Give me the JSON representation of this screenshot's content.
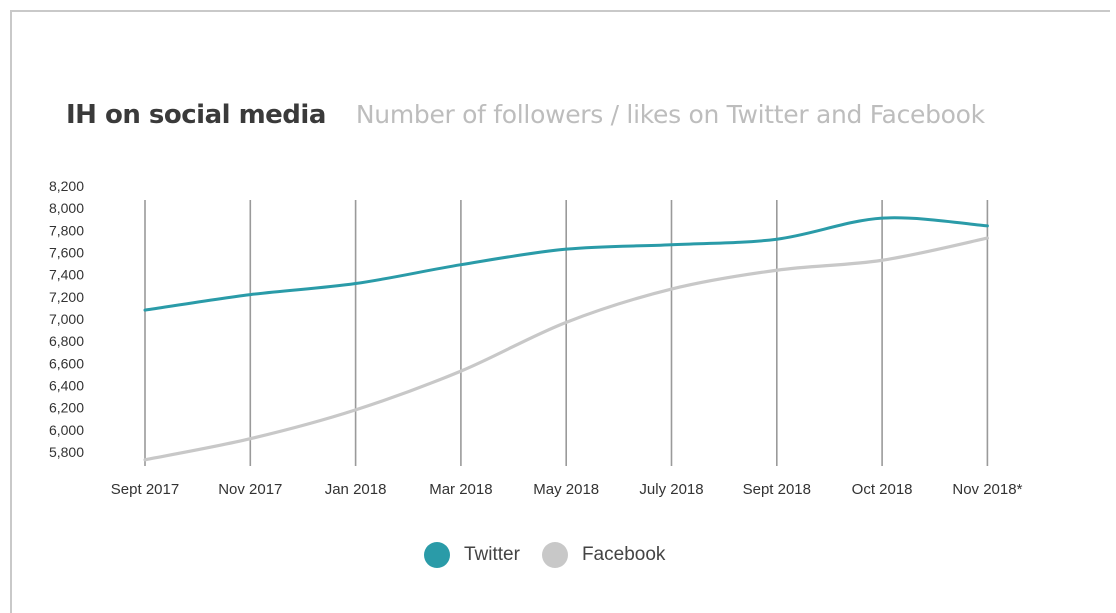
{
  "header": {
    "title": "IH on social media",
    "subtitle": "Number of followers / likes on Twitter and Facebook"
  },
  "colors": {
    "twitter": "#2a9ba8",
    "facebook": "#c8c8c8",
    "grid": "#9a9a9a"
  },
  "chart_data": {
    "type": "line",
    "title": "IH on social media",
    "subtitle": "Number of followers / likes on Twitter and Facebook",
    "categories": [
      "Sept 2017",
      "Nov 2017",
      "Jan 2018",
      "Mar 2018",
      "May 2018",
      "July 2018",
      "Sept 2018",
      "Oct 2018",
      "Nov 2018*"
    ],
    "series": [
      {
        "name": "Twitter",
        "values": [
          7080,
          7220,
          7320,
          7490,
          7630,
          7670,
          7720,
          7910,
          7840
        ]
      },
      {
        "name": "Facebook",
        "values": [
          5730,
          5920,
          6180,
          6530,
          6970,
          7270,
          7440,
          7530,
          7730
        ]
      }
    ],
    "y_ticks": [
      "8,200",
      "8,000",
      "7,800",
      "7,600",
      "7,400",
      "7,200",
      "7,000",
      "6,800",
      "6,600",
      "6,400",
      "6,200",
      "6,000",
      "5,800"
    ],
    "ylim": [
      5800,
      8200
    ],
    "grid": "vertical lines at each category",
    "legend_placement": "bottom-center",
    "xlabel": "",
    "ylabel": ""
  }
}
